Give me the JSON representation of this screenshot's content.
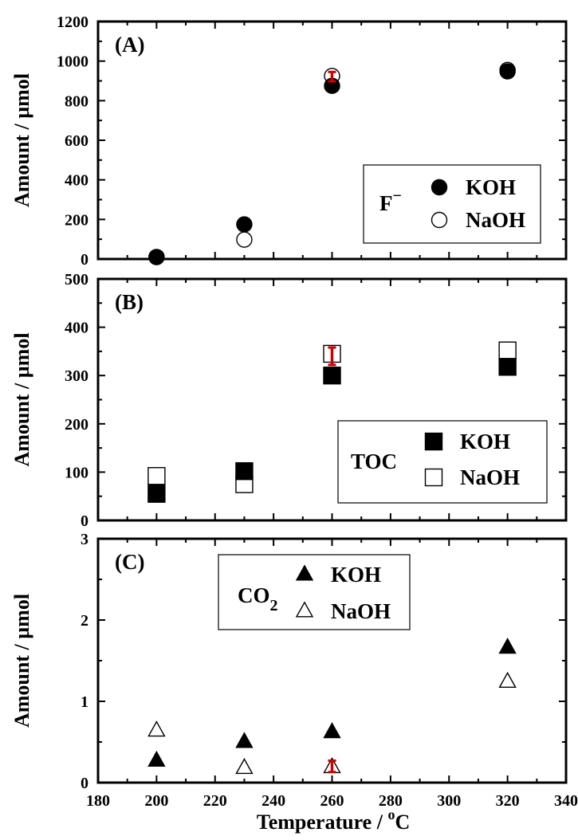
{
  "chart_data": [
    {
      "panel_label": "(A)",
      "type": "scatter",
      "ylabel": "Amount / µmol",
      "ylim": [
        0,
        1200
      ],
      "yticks": [
        0,
        200,
        400,
        600,
        800,
        1000,
        1200
      ],
      "xlim": [
        180,
        340
      ],
      "marker": "circle",
      "legend": {
        "title": "F",
        "title_sup": "−",
        "placement": "bottom-right"
      },
      "series": [
        {
          "name": "KOH",
          "filled": true,
          "x": [
            200,
            230,
            260,
            320
          ],
          "y": [
            10,
            175,
            875,
            948
          ]
        },
        {
          "name": "NaOH",
          "filled": false,
          "x": [
            200,
            230,
            260,
            320
          ],
          "y": [
            10,
            98,
            925,
            955
          ]
        }
      ],
      "error_bars": [
        {
          "x": 260,
          "low": 898,
          "high": 945,
          "color": "#cc0000"
        }
      ]
    },
    {
      "panel_label": "(B)",
      "type": "scatter",
      "ylabel": "Amount / µmol",
      "ylim": [
        0,
        500
      ],
      "yticks": [
        0,
        100,
        200,
        300,
        400,
        500
      ],
      "xlim": [
        180,
        340
      ],
      "marker": "square",
      "legend": {
        "title": "TOC",
        "title_sup": "",
        "placement": "bottom-right"
      },
      "series": [
        {
          "name": "KOH",
          "filled": true,
          "x": [
            200,
            230,
            260,
            320
          ],
          "y": [
            55,
            102,
            300,
            318
          ]
        },
        {
          "name": "NaOH",
          "filled": false,
          "x": [
            200,
            230,
            260,
            320
          ],
          "y": [
            92,
            75,
            345,
            352
          ]
        }
      ],
      "error_bars": [
        {
          "x": 260,
          "low": 322,
          "high": 358,
          "color": "#cc0000"
        }
      ]
    },
    {
      "panel_label": "(C)",
      "type": "scatter",
      "ylabel": "Amount / µmol",
      "xlabel": "Temperature / ",
      "xlabel_sup": "o",
      "xlabel_tail": "C",
      "ylim": [
        0,
        3
      ],
      "yticks": [
        0,
        1,
        2,
        3
      ],
      "xlim": [
        180,
        340
      ],
      "xticks": [
        180,
        200,
        220,
        240,
        260,
        280,
        300,
        320,
        340
      ],
      "marker": "triangle",
      "legend": {
        "title": "CO",
        "title_sub": "2",
        "placement": "top-center"
      },
      "series": [
        {
          "name": "KOH",
          "filled": true,
          "x": [
            200,
            230,
            260,
            320
          ],
          "y": [
            0.27,
            0.5,
            0.62,
            1.66
          ]
        },
        {
          "name": "NaOH",
          "filled": false,
          "x": [
            200,
            230,
            260,
            320
          ],
          "y": [
            0.64,
            0.18,
            0.19,
            1.24
          ]
        }
      ],
      "error_bars": [
        {
          "x": 260,
          "low": 0.13,
          "high": 0.27,
          "color": "#cc0000"
        }
      ]
    }
  ]
}
